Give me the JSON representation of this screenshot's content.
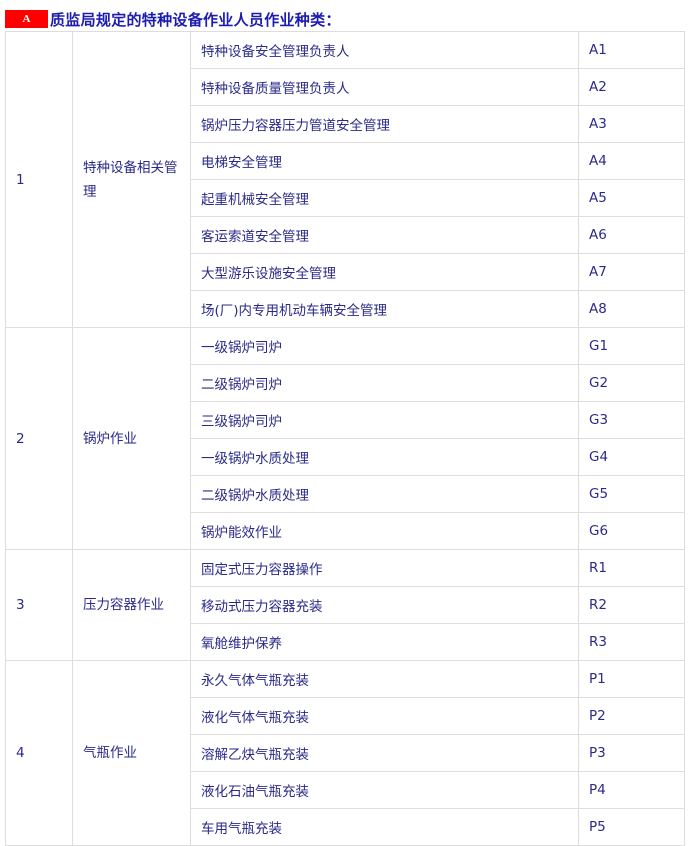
{
  "title": {
    "badge": "A",
    "text": "质监局规定的特种设备作业人员作业种类："
  },
  "groups": [
    {
      "no": "1",
      "category": "特种设备相关管理",
      "items": [
        {
          "name": "特种设备安全管理负责人",
          "code": "A1"
        },
        {
          "name": "特种设备质量管理负责人",
          "code": "A2"
        },
        {
          "name": "锅炉压力容器压力管道安全管理",
          "code": "A3"
        },
        {
          "name": "电梯安全管理",
          "code": "A4"
        },
        {
          "name": "起重机械安全管理",
          "code": "A5"
        },
        {
          "name": "客运索道安全管理",
          "code": "A6"
        },
        {
          "name": "大型游乐设施安全管理",
          "code": "A7"
        },
        {
          "name": "场(厂)内专用机动车辆安全管理",
          "code": "A8"
        }
      ]
    },
    {
      "no": "2",
      "category": "锅炉作业",
      "items": [
        {
          "name": "一级锅炉司炉",
          "code": "G1"
        },
        {
          "name": "二级锅炉司炉",
          "code": "G2"
        },
        {
          "name": "三级锅炉司炉",
          "code": "G3"
        },
        {
          "name": "一级锅炉水质处理",
          "code": "G4"
        },
        {
          "name": "二级锅炉水质处理",
          "code": "G5"
        },
        {
          "name": "锅炉能效作业",
          "code": "G6"
        }
      ]
    },
    {
      "no": "3",
      "category": "压力容器作业",
      "items": [
        {
          "name": "固定式压力容器操作",
          "code": "R1"
        },
        {
          "name": "移动式压力容器充装",
          "code": "R2"
        },
        {
          "name": "氧舱维护保养",
          "code": "R3"
        }
      ]
    },
    {
      "no": "4",
      "category": "气瓶作业",
      "items": [
        {
          "name": "永久气体气瓶充装",
          "code": "P1"
        },
        {
          "name": "液化气体气瓶充装",
          "code": "P2"
        },
        {
          "name": "溶解乙炔气瓶充装",
          "code": "P3"
        },
        {
          "name": "液化石油气瓶充装",
          "code": "P4"
        },
        {
          "name": "车用气瓶充装",
          "code": "P5"
        }
      ]
    }
  ]
}
